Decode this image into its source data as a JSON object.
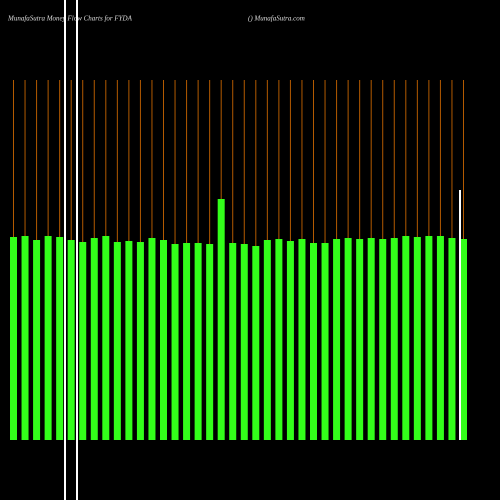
{
  "chart_data": {
    "type": "bar",
    "title": "MunafaSutra  Money Flow  Charts for FYDA",
    "subtitle": "() MunafaSutra.com",
    "values": [
      203,
      204,
      200,
      204,
      203,
      200,
      198,
      202,
      204,
      198,
      199,
      198,
      202,
      200,
      196,
      197,
      197,
      196,
      241,
      197,
      196,
      194,
      200,
      201,
      199,
      201,
      197,
      197,
      201,
      202,
      201,
      202,
      201,
      202,
      204,
      203,
      204,
      204,
      202,
      201
    ],
    "color": "#33ff1a",
    "ylim": [
      0,
      360
    ]
  }
}
